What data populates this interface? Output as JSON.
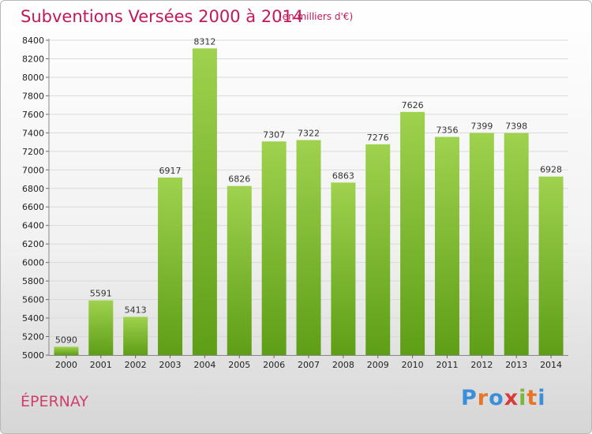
{
  "title": "Subventions Versées 2000 à 2014",
  "subtitle": "(en milliers d'€)",
  "city": "ÉPERNAY",
  "logo": {
    "letters": [
      "P",
      "r",
      "o",
      "x",
      "i",
      "t",
      "i"
    ],
    "colors": [
      "#3a8fd8",
      "#e8742a",
      "#3a8fd8",
      "#d83a3a",
      "#7ab838",
      "#e8742a",
      "#3a8fd8"
    ]
  },
  "colors": {
    "bar_top": "#9fd24e",
    "bar_bottom": "#5e9e16",
    "title": "#c2185b"
  },
  "chart_data": {
    "type": "bar",
    "categories": [
      "2000",
      "2001",
      "2002",
      "2003",
      "2004",
      "2005",
      "2006",
      "2007",
      "2008",
      "2009",
      "2010",
      "2011",
      "2012",
      "2013",
      "2014"
    ],
    "values": [
      5090,
      5591,
      5413,
      6917,
      8312,
      6826,
      7307,
      7322,
      6863,
      7276,
      7626,
      7356,
      7399,
      7398,
      6928
    ],
    "title": "Subventions Versées 2000 à 2014",
    "ylim": [
      5000,
      8400
    ],
    "yticks": [
      5000,
      5200,
      5400,
      5600,
      5800,
      6000,
      6200,
      6400,
      6600,
      6800,
      7000,
      7200,
      7400,
      7600,
      7800,
      8000,
      8200,
      8400
    ],
    "grid": true
  }
}
